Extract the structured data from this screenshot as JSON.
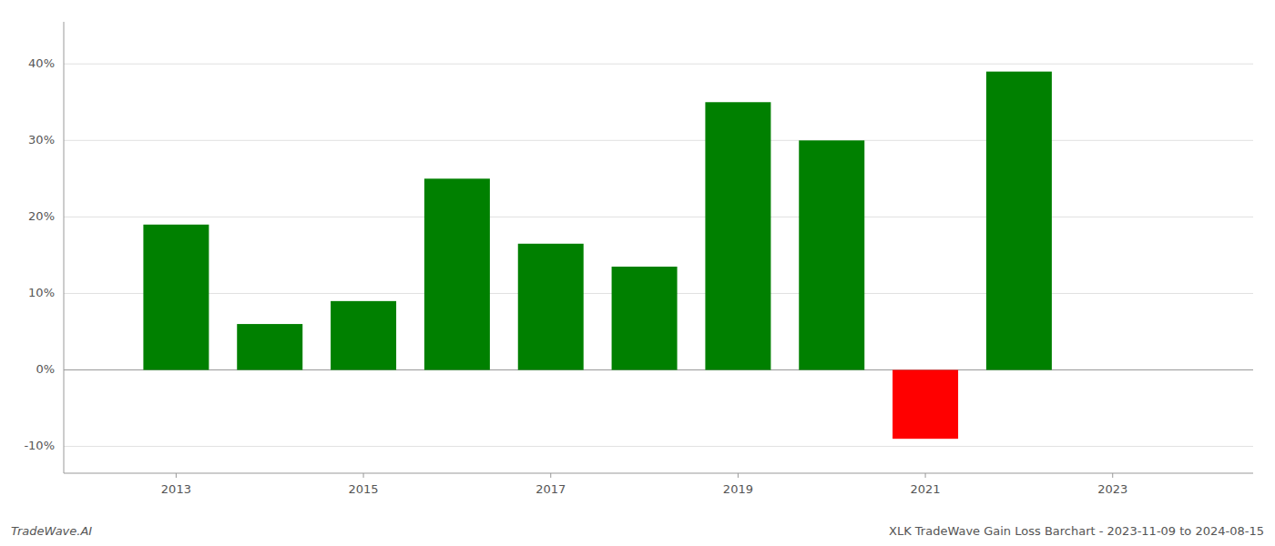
{
  "chart_data": {
    "type": "bar",
    "title": "XLK TradeWave Gain Loss Barchart - 2023-11-09 to 2024-08-15",
    "annotations": [
      "TradeWave.AI"
    ],
    "x": [
      2013,
      2014,
      2015,
      2016,
      2017,
      2018,
      2019,
      2020,
      2021,
      2022
    ],
    "values": [
      0.19,
      0.06,
      0.09,
      0.25,
      0.165,
      0.135,
      0.35,
      0.3,
      -0.09,
      0.39
    ],
    "colors": [
      "#008000",
      "#008000",
      "#008000",
      "#008000",
      "#008000",
      "#008000",
      "#008000",
      "#008000",
      "#ff0000",
      "#008000"
    ],
    "xlim": [
      2011.8,
      2024.5
    ],
    "xticks": [
      2013,
      2015,
      2017,
      2019,
      2021,
      2023
    ],
    "ylim": [
      -0.135,
      0.455
    ],
    "yticks": [
      {
        "value": -0.1,
        "label": "-10%"
      },
      {
        "value": 0.0,
        "label": "0%"
      },
      {
        "value": 0.1,
        "label": "10%"
      },
      {
        "value": 0.2,
        "label": "20%"
      },
      {
        "value": 0.3,
        "label": "30%"
      },
      {
        "value": 0.4,
        "label": "40%"
      }
    ],
    "grid": true
  }
}
